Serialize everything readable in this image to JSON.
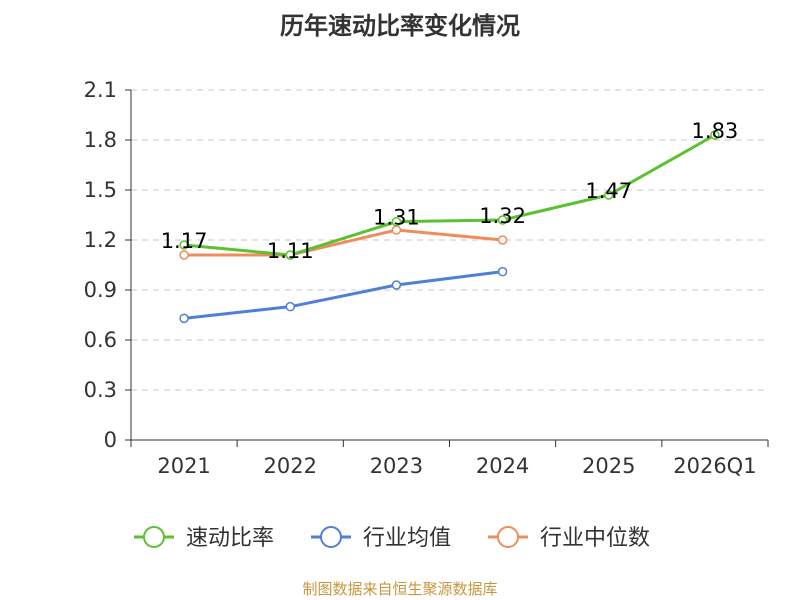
{
  "chart_data": {
    "type": "line",
    "title": "历年速动比率变化情况",
    "categories": [
      "2021",
      "2022",
      "2023",
      "2024",
      "2025",
      "2026Q1"
    ],
    "ylim": [
      0,
      2.1
    ],
    "yticks": [
      "0",
      "0.3",
      "0.6",
      "0.9",
      "1.2",
      "1.5",
      "1.8",
      "2.1"
    ],
    "grid": true,
    "legend_position": "bottom",
    "series": [
      {
        "name": "速动比率",
        "color": "#5ac12f",
        "values": [
          1.17,
          1.11,
          1.31,
          1.32,
          1.47,
          1.83
        ],
        "labels": [
          "1.17",
          "1.11",
          "1.31",
          "1.32",
          "1.47",
          "1.83"
        ]
      },
      {
        "name": "行业均值",
        "color": "#4f7fd6",
        "values": [
          0.73,
          0.8,
          0.93,
          1.01,
          null,
          null
        ]
      },
      {
        "name": "行业中位数",
        "color": "#f08c5c",
        "values": [
          1.11,
          1.11,
          1.26,
          1.2,
          null,
          null
        ]
      }
    ]
  },
  "source_note": "制图数据来自恒生聚源数据库",
  "source_note_color": "#c8963e"
}
